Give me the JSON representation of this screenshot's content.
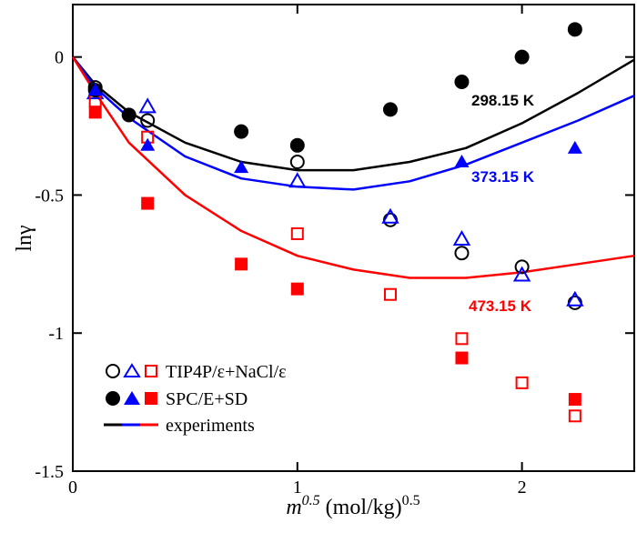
{
  "chart_data": {
    "type": "scatter",
    "xlabel_main": "m",
    "xlabel_sup": "0.5",
    "xlabel_unit": "(mol/kg)",
    "xlabel_unit_sup": "0.5",
    "ylabel": "lnγ",
    "xlim": [
      0,
      2.5
    ],
    "ylim": [
      -1.5,
      0.19
    ],
    "xticks": [
      {
        "v": 0,
        "label": "0"
      },
      {
        "v": 1,
        "label": "1"
      },
      {
        "v": 2,
        "label": "2"
      }
    ],
    "yticks": [
      {
        "v": 0,
        "label": "0"
      },
      {
        "v": -0.5,
        "label": "-0.5"
      },
      {
        "v": -1,
        "label": "-1"
      },
      {
        "v": -1.5,
        "label": "-1.5"
      }
    ],
    "grid": false,
    "legend_placement": "bottom-left",
    "legend": [
      {
        "label": "TIP4P/ε+NaCl/ε",
        "markers": [
          "open-circle",
          "open-triangle",
          "open-square"
        ]
      },
      {
        "label": "SPC/E+SD",
        "markers": [
          "filled-circle",
          "filled-triangle",
          "filled-square"
        ]
      },
      {
        "label": "experiments",
        "markers": [
          "line-black",
          "line-blue",
          "line-red"
        ]
      }
    ],
    "colors": {
      "298.15 K": "#000000",
      "373.15 K": "#0000ff",
      "473.15 K": "#ff0000"
    },
    "annotations": [
      {
        "text": "298.15 K",
        "color": "#000000"
      },
      {
        "text": "373.15 K",
        "color": "#0000ff"
      },
      {
        "text": "473.15 K",
        "color": "#ff0000"
      }
    ],
    "series": [
      {
        "model": "TIP4P/ε+NaCl/ε",
        "temperature": "298.15 K",
        "marker": "open-circle",
        "color": "#000000",
        "x": [
          0.1,
          0.333,
          1,
          1.414,
          1.732,
          2,
          2.236
        ],
        "y": [
          -0.11,
          -0.23,
          -0.38,
          -0.59,
          -0.71,
          -0.76,
          -0.89
        ]
      },
      {
        "model": "TIP4P/ε+NaCl/ε",
        "temperature": "373.15 K",
        "marker": "open-triangle",
        "color": "#0000ff",
        "x": [
          0.1,
          0.333,
          1,
          1.414,
          1.732,
          2,
          2.236
        ],
        "y": [
          -0.13,
          -0.18,
          -0.45,
          -0.58,
          -0.66,
          -0.79,
          -0.88
        ]
      },
      {
        "model": "TIP4P/ε+NaCl/ε",
        "temperature": "473.15 K",
        "marker": "open-square",
        "color": "#ff0000",
        "x": [
          0.1,
          0.333,
          1,
          1.414,
          1.732,
          2,
          2.236
        ],
        "y": [
          -0.16,
          -0.29,
          -0.64,
          -0.86,
          -1.02,
          -1.18,
          -1.3
        ]
      },
      {
        "model": "SPC/E+SD",
        "temperature": "298.15 K",
        "marker": "filled-circle",
        "color": "#000000",
        "x": [
          0.1,
          0.25,
          0.75,
          1,
          1.414,
          1.732,
          2,
          2.236
        ],
        "y": [
          -0.12,
          -0.21,
          -0.27,
          -0.32,
          -0.19,
          -0.09,
          0.0,
          0.1
        ]
      },
      {
        "model": "SPC/E+SD",
        "temperature": "373.15 K",
        "marker": "filled-triangle",
        "color": "#0000ff",
        "x": [
          0.1,
          0.333,
          0.75,
          1.732,
          2.236
        ],
        "y": [
          -0.12,
          -0.32,
          -0.4,
          -0.38,
          -0.33
        ]
      },
      {
        "model": "SPC/E+SD",
        "temperature": "473.15 K",
        "marker": "filled-square",
        "color": "#ff0000",
        "x": [
          0.1,
          0.333,
          0.75,
          1,
          1.732,
          2.236
        ],
        "y": [
          -0.2,
          -0.53,
          -0.75,
          -0.84,
          -1.09,
          -1.24
        ]
      },
      {
        "model": "experiments",
        "temperature": "298.15 K",
        "marker": "line",
        "color": "#000000",
        "x": [
          0,
          0.1,
          0.25,
          0.5,
          0.75,
          1,
          1.25,
          1.5,
          1.75,
          2,
          2.25,
          2.5
        ],
        "y": [
          0,
          -0.1,
          -0.2,
          -0.31,
          -0.38,
          -0.41,
          -0.41,
          -0.38,
          -0.33,
          -0.24,
          -0.13,
          -0.01
        ]
      },
      {
        "model": "experiments",
        "temperature": "373.15 K",
        "marker": "line",
        "color": "#0000ff",
        "x": [
          0,
          0.1,
          0.25,
          0.5,
          0.75,
          1,
          1.25,
          1.5,
          1.75,
          2,
          2.25,
          2.5
        ],
        "y": [
          0,
          -0.11,
          -0.22,
          -0.36,
          -0.44,
          -0.47,
          -0.48,
          -0.45,
          -0.39,
          -0.31,
          -0.23,
          -0.14
        ]
      },
      {
        "model": "experiments",
        "temperature": "473.15 K",
        "marker": "line",
        "color": "#ff0000",
        "x": [
          0,
          0.1,
          0.25,
          0.5,
          0.75,
          1,
          1.25,
          1.5,
          1.75,
          2,
          2.25,
          2.5
        ],
        "y": [
          0,
          -0.13,
          -0.31,
          -0.5,
          -0.63,
          -0.72,
          -0.77,
          -0.8,
          -0.8,
          -0.78,
          -0.75,
          -0.72
        ]
      }
    ]
  }
}
